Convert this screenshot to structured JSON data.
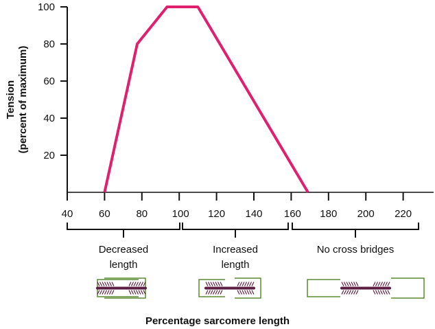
{
  "chart_data": {
    "type": "line",
    "title": "",
    "xlabel": "Percentage sarcomere length",
    "ylabel_line1": "Tension",
    "ylabel_line2": "(percent of maximum)",
    "xlim": [
      40,
      233
    ],
    "ylim": [
      0,
      100
    ],
    "xticks": [
      40,
      60,
      80,
      100,
      120,
      140,
      160,
      180,
      200,
      220
    ],
    "xtick_labels": [
      "40",
      "60",
      "80",
      "100",
      "120",
      "140",
      "160",
      "180",
      "200",
      "220"
    ],
    "yticks": [
      20,
      40,
      60,
      80,
      100
    ],
    "ytick_labels": [
      "20",
      "40",
      "60",
      "80",
      "100"
    ],
    "grid": false,
    "series": [
      {
        "x": [
          60,
          77.5,
          93.5,
          110,
          169
        ],
        "y": [
          0,
          80,
          100,
          100,
          0
        ],
        "color": "#e0206e"
      }
    ],
    "regions": [
      {
        "from": 40,
        "to": 100,
        "line1": "Decreased",
        "line2": "length",
        "overlap": "high"
      },
      {
        "from": 101,
        "to": 160,
        "line1": "Increased",
        "line2": "length",
        "overlap": "partial"
      },
      {
        "from": 162,
        "to": 230,
        "line1": "No cross bridges",
        "line2": "",
        "overlap": "none"
      }
    ],
    "colors": {
      "actin": "#5a8a32",
      "myosin": "#5c1f43",
      "axis": "#111111"
    }
  }
}
